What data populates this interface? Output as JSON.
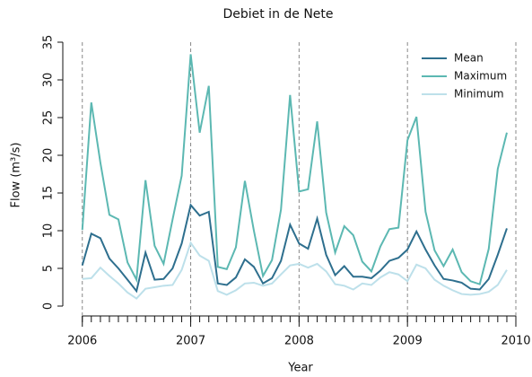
{
  "chart_data": {
    "type": "line",
    "title": "Debiet in de Nete",
    "xlabel": "Year",
    "ylabel": "Flow (m³/s)",
    "x": [
      2006,
      2006.083,
      2006.167,
      2006.25,
      2006.333,
      2006.417,
      2006.5,
      2006.583,
      2006.667,
      2006.75,
      2006.833,
      2006.917,
      2007,
      2007.083,
      2007.167,
      2007.25,
      2007.333,
      2007.417,
      2007.5,
      2007.583,
      2007.667,
      2007.75,
      2007.833,
      2007.917,
      2008,
      2008.083,
      2008.167,
      2008.25,
      2008.333,
      2008.417,
      2008.5,
      2008.583,
      2008.667,
      2008.75,
      2008.833,
      2008.917,
      2009,
      2009.083,
      2009.167,
      2009.25,
      2009.333,
      2009.417,
      2009.5,
      2009.583,
      2009.667,
      2009.75,
      2009.833,
      2009.917
    ],
    "series": [
      {
        "name": "Mean",
        "color": "#2e6f8e",
        "values": [
          5.4,
          9.6,
          9.0,
          6.3,
          5.0,
          3.5,
          2.0,
          7.1,
          3.5,
          3.6,
          5.0,
          8.3,
          13.4,
          12.0,
          12.5,
          3.0,
          2.8,
          3.8,
          6.2,
          5.2,
          3.0,
          3.7,
          6.0,
          10.8,
          8.3,
          7.6,
          11.6,
          6.8,
          4.1,
          5.3,
          3.9,
          3.9,
          3.7,
          4.7,
          6.0,
          6.4,
          7.5,
          9.9,
          7.5,
          5.4,
          3.6,
          3.4,
          3.1,
          2.3,
          2.2,
          3.6,
          6.8,
          10.3
        ]
      },
      {
        "name": "Maximum",
        "color": "#5cb8b2",
        "values": [
          10.1,
          27.0,
          19.0,
          12.1,
          11.5,
          5.8,
          3.5,
          16.7,
          8.0,
          5.6,
          11.5,
          17.3,
          33.4,
          23.0,
          29.2,
          5.2,
          4.9,
          7.8,
          16.6,
          10.0,
          4.0,
          6.1,
          12.8,
          28.0,
          15.2,
          15.5,
          24.5,
          12.4,
          7.1,
          10.6,
          9.4,
          5.9,
          4.6,
          7.9,
          10.2,
          10.4,
          22.0,
          25.1,
          12.5,
          7.4,
          5.3,
          7.5,
          4.5,
          3.3,
          2.9,
          7.6,
          18.2,
          23.0
        ]
      },
      {
        "name": "Minimum",
        "color": "#bde0ea",
        "values": [
          3.6,
          3.7,
          5.1,
          4.0,
          3.0,
          1.8,
          1.0,
          2.3,
          2.5,
          2.7,
          2.8,
          4.8,
          8.4,
          6.7,
          6.0,
          2.0,
          1.5,
          2.1,
          3.0,
          3.1,
          2.7,
          3.0,
          4.2,
          5.4,
          5.6,
          5.1,
          5.6,
          4.6,
          2.9,
          2.7,
          2.2,
          3.0,
          2.8,
          3.8,
          4.5,
          4.2,
          3.3,
          5.5,
          5.0,
          3.5,
          2.7,
          2.1,
          1.6,
          1.5,
          1.6,
          1.9,
          2.8,
          4.8
        ]
      }
    ],
    "xlim": [
      2005.82,
      2010
    ],
    "xticks": [
      2006,
      2007,
      2008,
      2009,
      2010
    ],
    "ylim": [
      0,
      35
    ],
    "yticks": [
      0,
      5,
      10,
      15,
      20,
      25,
      30,
      35
    ],
    "grid": true,
    "legend": "top-right"
  }
}
